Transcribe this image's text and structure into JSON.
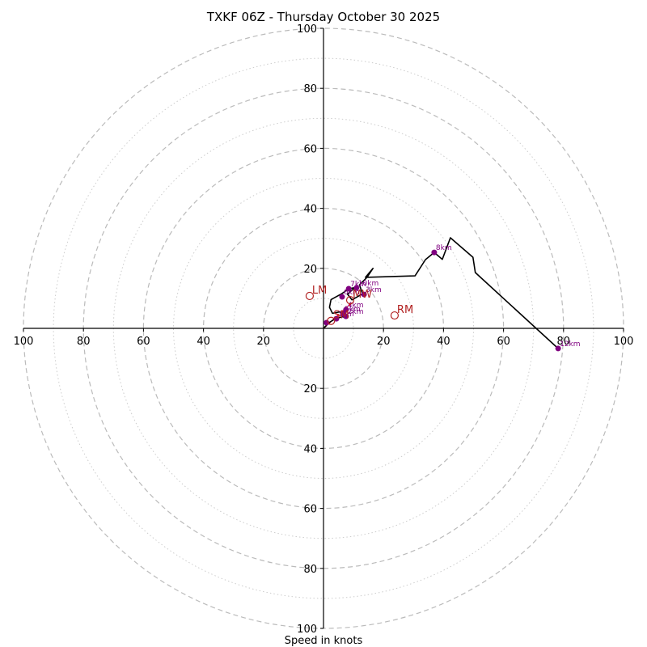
{
  "chart_data": {
    "type": "line",
    "subtype": "hodograph",
    "title": "TXKF 06Z - Thursday October 30 2025",
    "xlabel": "Speed in knots",
    "ylabel": "",
    "range_knots": 100,
    "grid": true,
    "ring_major_knots": [
      20,
      40,
      60,
      80,
      100
    ],
    "ring_minor_knots": [
      10,
      30,
      50,
      70,
      90
    ],
    "axis_tick_labels": [
      "20",
      "40",
      "60",
      "80",
      "100"
    ],
    "colors": {
      "trace": "#000000",
      "height_points": "#800080",
      "motion_markers": "#b22222",
      "grid": "#bbbbbb",
      "shear_vector": "#ff0000"
    },
    "trace": {
      "u": [
        0,
        2,
        4,
        7.5,
        8,
        6.5,
        5.5,
        3,
        2,
        2.5,
        6,
        8.5,
        10.5,
        8,
        9.5,
        13,
        12,
        14.5,
        16.5,
        14,
        30.5,
        34,
        36.9,
        39.6,
        42.3,
        49.8,
        50.6,
        78.2
      ],
      "v": [
        0,
        2,
        3.2,
        4.2,
        3.8,
        3.8,
        5.5,
        5,
        7,
        9.6,
        11.5,
        13.2,
        13.6,
        11.4,
        9.5,
        11.5,
        14.5,
        17,
        20,
        17,
        17.5,
        22.9,
        25.3,
        23,
        30.2,
        23.7,
        18.6,
        -6.7
      ]
    },
    "height_points": [
      {
        "label": "",
        "u": 1,
        "v": 1.9
      },
      {
        "label": "1km",
        "u": 4.3,
        "v": 3.2
      },
      {
        "label": "2km",
        "u": 7.5,
        "v": 4.0
      },
      {
        "label": "3km",
        "u": 13.5,
        "v": 11.3
      },
      {
        "label": "4km",
        "u": 7.5,
        "v": 6.2
      },
      {
        "label": "5km",
        "u": 6.5,
        "v": 4.8
      },
      {
        "label": "6km",
        "u": 6.2,
        "v": 10.5
      },
      {
        "label": "7km",
        "u": 8.4,
        "v": 13.2
      },
      {
        "label": "8km",
        "u": 36.9,
        "v": 25.3
      },
      {
        "label": "10km",
        "u": 11,
        "v": 13.5
      },
      {
        "label": "12km",
        "u": 78.2,
        "v": -6.7
      }
    ],
    "motion_markers": [
      {
        "label": "LM",
        "u": -4.6,
        "v": 10.8
      },
      {
        "label": "RM",
        "u": 23.7,
        "v": 4.3
      },
      {
        "label": "MW",
        "u": 8.9,
        "v": 9.4
      },
      {
        "label": "SM",
        "u": 2.5,
        "v": 2.5
      }
    ],
    "shear_vector": {
      "u0": 0,
      "v0": 0,
      "u1": 9.5,
      "v1": 8.5
    }
  }
}
